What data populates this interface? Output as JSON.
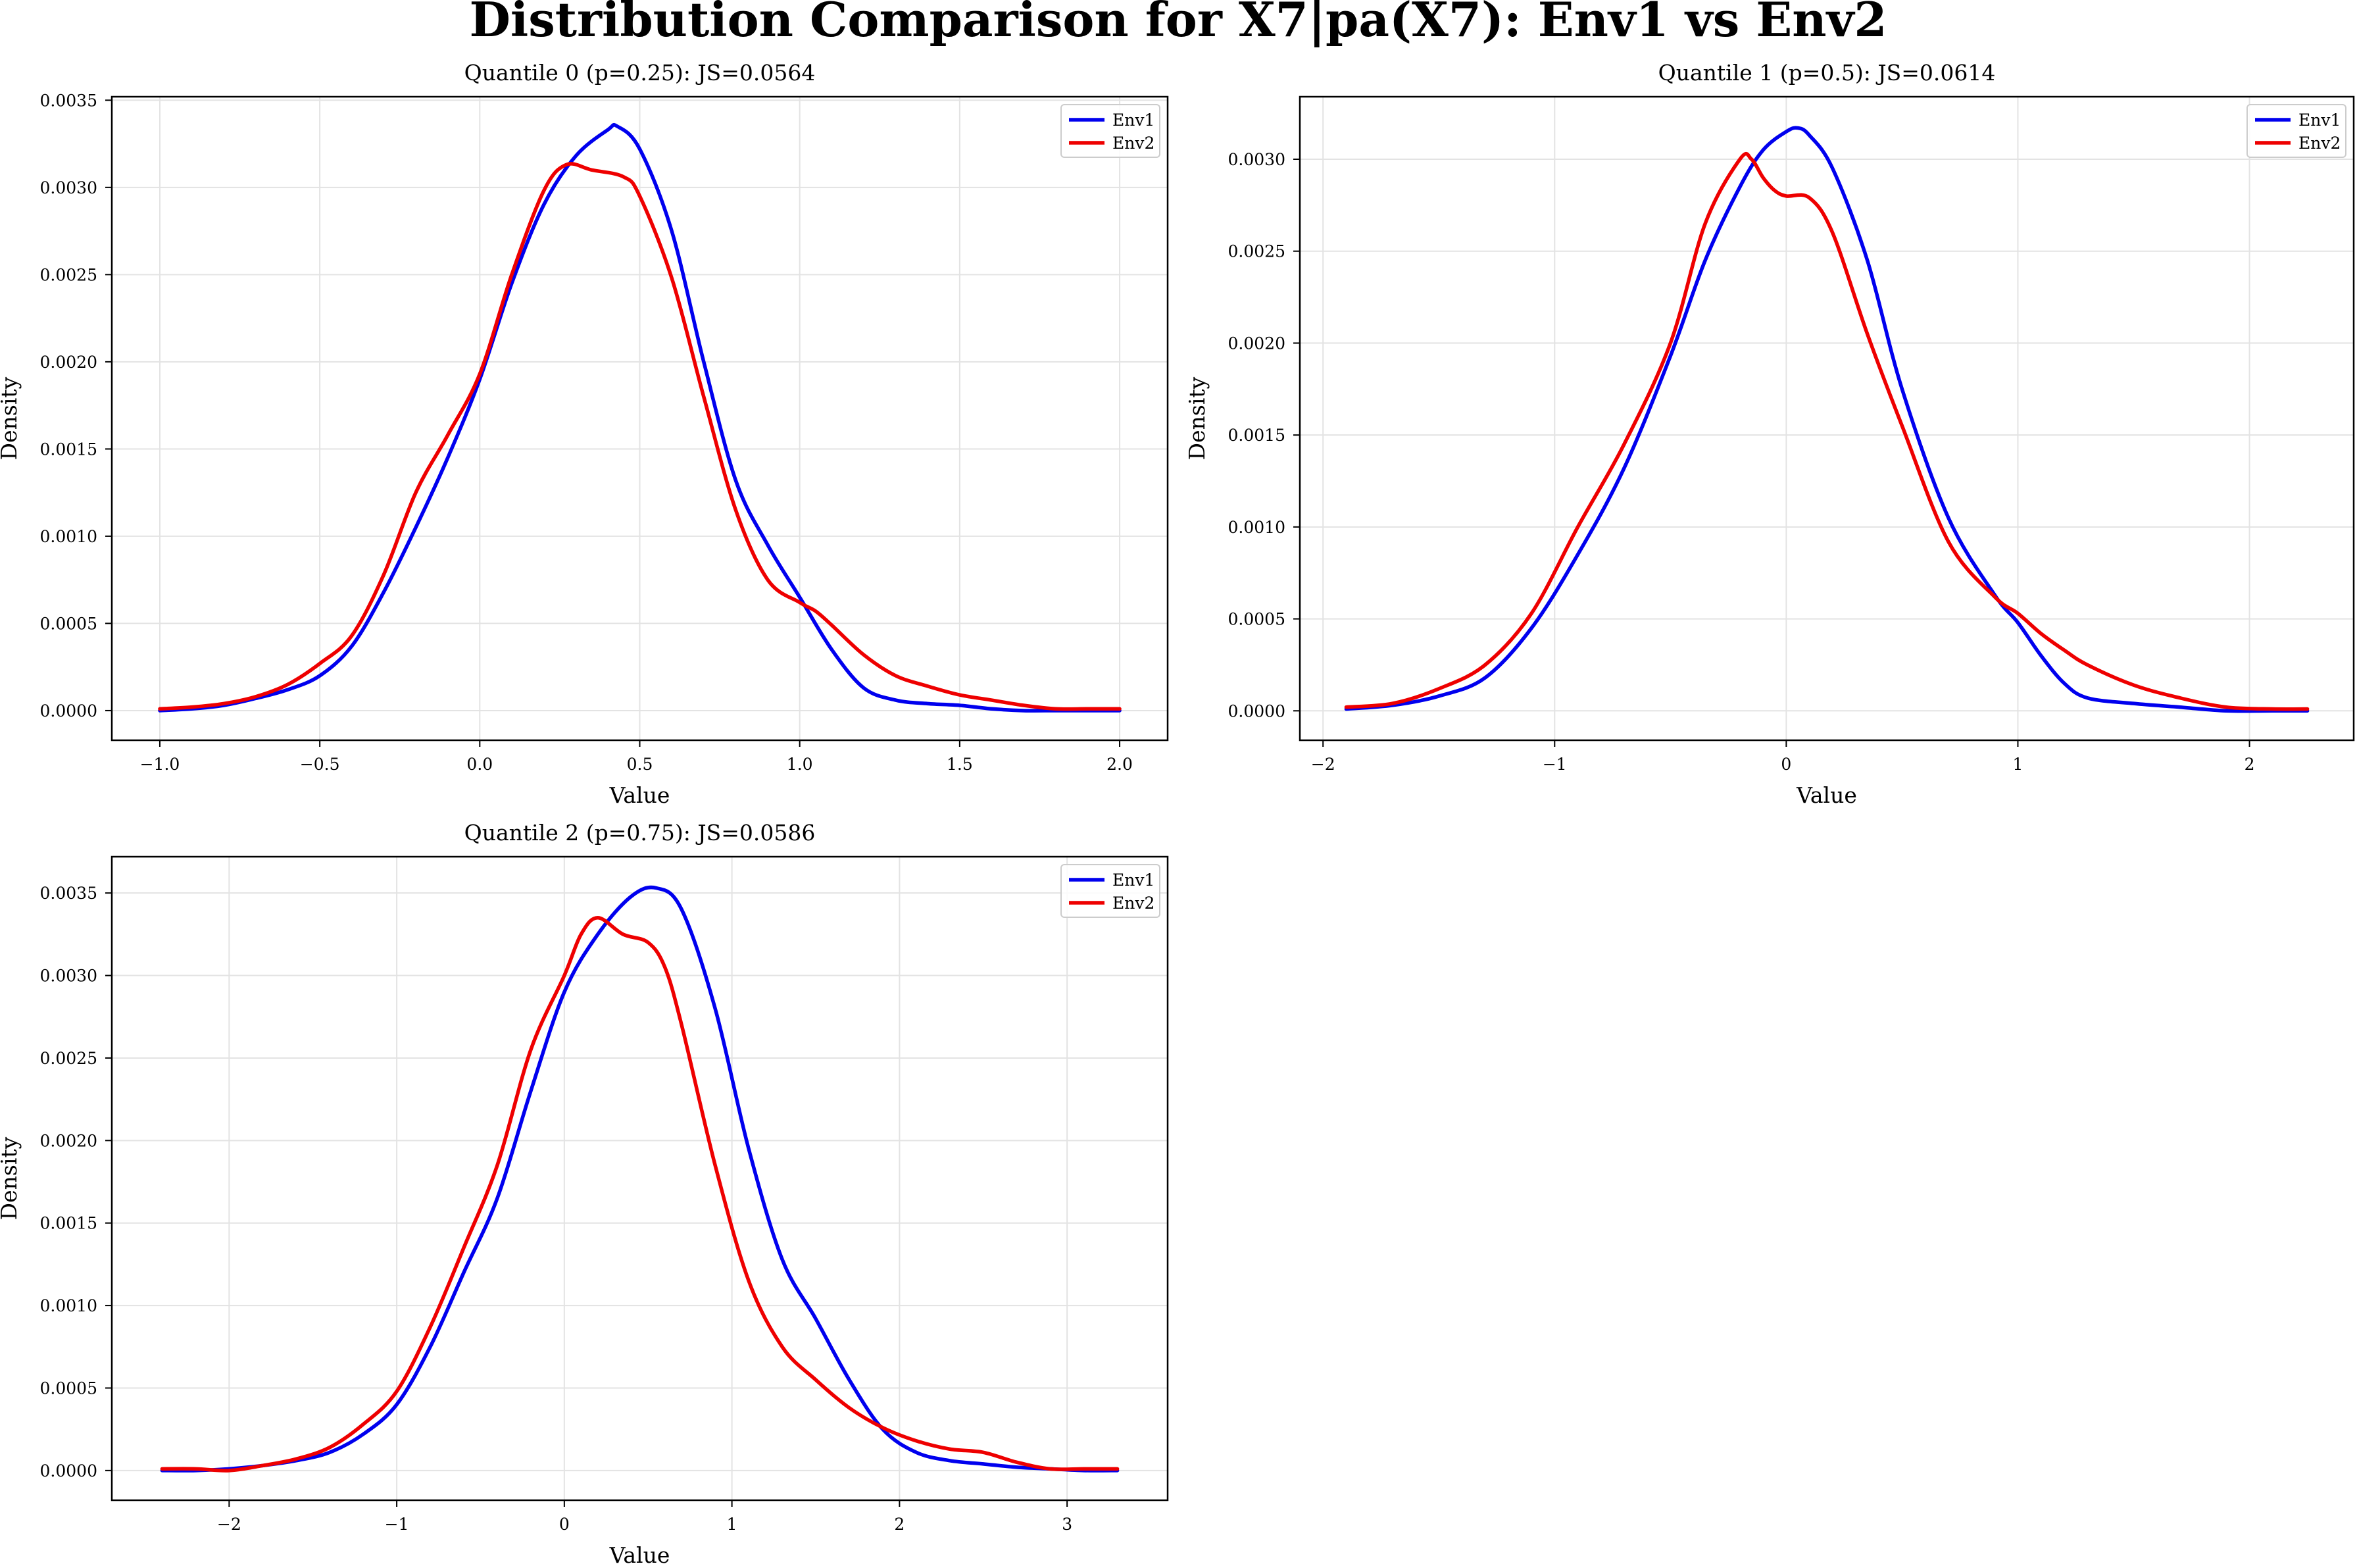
{
  "figure": {
    "title": "Distribution Comparison for X7|pa(X7): Env1 vs Env2"
  },
  "chart_data": [
    {
      "type": "line",
      "title": "Quantile 0 (p=0.25): JS=0.0564",
      "xlabel": "Value",
      "ylabel": "Density",
      "xlim": [
        -1.15,
        2.15
      ],
      "ylim": [
        -0.00017,
        0.00352
      ],
      "xticks": [
        -1.0,
        -0.5,
        0.0,
        0.5,
        1.0,
        1.5,
        2.0
      ],
      "xtick_labels": [
        "−1.0",
        "−0.5",
        "0.0",
        "0.5",
        "1.0",
        "1.5",
        "2.0"
      ],
      "yticks": [
        0.0,
        0.0005,
        0.001,
        0.0015,
        0.002,
        0.0025,
        0.003,
        0.0035
      ],
      "ytick_labels": [
        "0.0000",
        "0.0005",
        "0.0010",
        "0.0015",
        "0.0020",
        "0.0025",
        "0.0030",
        "0.0035"
      ],
      "grid": true,
      "legend": "top-right",
      "series": [
        {
          "name": "Env1",
          "color": "#0000ee",
          "x": [
            -1.0,
            -0.9,
            -0.8,
            -0.7,
            -0.6,
            -0.5,
            -0.4,
            -0.3,
            -0.2,
            -0.1,
            0.0,
            0.1,
            0.2,
            0.3,
            0.4,
            0.43,
            0.5,
            0.6,
            0.7,
            0.8,
            0.9,
            1.0,
            1.1,
            1.2,
            1.3,
            1.4,
            1.5,
            1.6,
            1.7,
            1.8,
            1.9,
            2.0
          ],
          "y": [
            0.0,
            1e-05,
            3e-05,
            7e-05,
            0.00012,
            0.0002,
            0.00037,
            0.00068,
            0.00105,
            0.00145,
            0.0019,
            0.00245,
            0.0029,
            0.00318,
            0.00333,
            0.00335,
            0.00322,
            0.00275,
            0.002,
            0.00132,
            0.00095,
            0.00065,
            0.00035,
            0.00013,
            6e-05,
            4e-05,
            3e-05,
            1e-05,
            0.0,
            0.0,
            0.0,
            0.0
          ]
        },
        {
          "name": "Env2",
          "color": "#ee0000",
          "x": [
            -1.0,
            -0.9,
            -0.8,
            -0.7,
            -0.6,
            -0.5,
            -0.4,
            -0.3,
            -0.2,
            -0.1,
            0.0,
            0.1,
            0.2,
            0.27,
            0.35,
            0.45,
            0.5,
            0.6,
            0.7,
            0.8,
            0.9,
            1.0,
            1.05,
            1.1,
            1.2,
            1.3,
            1.4,
            1.5,
            1.6,
            1.7,
            1.8,
            1.9,
            2.0
          ],
          "y": [
            1e-05,
            2e-05,
            4e-05,
            8e-05,
            0.00015,
            0.00027,
            0.00043,
            0.00078,
            0.00125,
            0.00158,
            0.00193,
            0.0025,
            0.00298,
            0.00313,
            0.0031,
            0.00306,
            0.00295,
            0.00248,
            0.0018,
            0.00115,
            0.00075,
            0.00062,
            0.00057,
            0.00049,
            0.00032,
            0.0002,
            0.00014,
            9e-05,
            6e-05,
            3e-05,
            1e-05,
            1e-05,
            1e-05
          ]
        }
      ]
    },
    {
      "type": "line",
      "title": "Quantile 1 (p=0.5): JS=0.0614",
      "xlabel": "Value",
      "ylabel": "Density",
      "xlim": [
        -2.1,
        2.45
      ],
      "ylim": [
        -0.00016,
        0.00334
      ],
      "xticks": [
        -2,
        -1,
        0,
        1,
        2
      ],
      "xtick_labels": [
        "−2",
        "−1",
        "0",
        "1",
        "2"
      ],
      "yticks": [
        0.0,
        0.0005,
        0.001,
        0.0015,
        0.002,
        0.0025,
        0.003
      ],
      "ytick_labels": [
        "0.0000",
        "0.0005",
        "0.0010",
        "0.0015",
        "0.0020",
        "0.0025",
        "0.0030"
      ],
      "grid": true,
      "legend": "top-right",
      "series": [
        {
          "name": "Env1",
          "color": "#0000ee",
          "x": [
            -1.9,
            -1.7,
            -1.5,
            -1.3,
            -1.1,
            -0.9,
            -0.7,
            -0.5,
            -0.35,
            -0.2,
            -0.1,
            0.0,
            0.05,
            0.1,
            0.2,
            0.35,
            0.5,
            0.7,
            0.9,
            1.0,
            1.1,
            1.2,
            1.3,
            1.5,
            1.7,
            1.9,
            2.1,
            2.25
          ],
          "y": [
            1e-05,
            3e-05,
            8e-05,
            0.00018,
            0.00045,
            0.00085,
            0.00132,
            0.00193,
            0.00245,
            0.00285,
            0.00305,
            0.00315,
            0.00317,
            0.00313,
            0.00295,
            0.00245,
            0.00175,
            0.00105,
            0.00063,
            0.00048,
            0.0003,
            0.00015,
            7e-05,
            4e-05,
            2e-05,
            0.0,
            0.0,
            0.0
          ]
        },
        {
          "name": "Env2",
          "color": "#ee0000",
          "x": [
            -1.9,
            -1.7,
            -1.5,
            -1.3,
            -1.1,
            -0.9,
            -0.7,
            -0.5,
            -0.35,
            -0.2,
            -0.15,
            -0.1,
            -0.05,
            0.0,
            0.1,
            0.2,
            0.35,
            0.5,
            0.7,
            0.9,
            1.0,
            1.1,
            1.2,
            1.3,
            1.5,
            1.7,
            1.9,
            2.1,
            2.25
          ],
          "y": [
            2e-05,
            4e-05,
            0.00012,
            0.00025,
            0.00053,
            0.001,
            0.00145,
            0.002,
            0.00265,
            0.003,
            0.003,
            0.0029,
            0.00283,
            0.0028,
            0.00279,
            0.0026,
            0.00205,
            0.00155,
            0.00092,
            0.00062,
            0.00053,
            0.00042,
            0.00033,
            0.00025,
            0.00014,
            7e-05,
            2e-05,
            1e-05,
            1e-05
          ]
        }
      ]
    },
    {
      "type": "line",
      "title": "Quantile 2 (p=0.75): JS=0.0586",
      "xlabel": "Value",
      "ylabel": "Density",
      "xlim": [
        -2.7,
        3.6
      ],
      "ylim": [
        -0.00018,
        0.00372
      ],
      "xticks": [
        -2,
        -1,
        0,
        1,
        2,
        3
      ],
      "xtick_labels": [
        "−2",
        "−1",
        "0",
        "1",
        "2",
        "3"
      ],
      "yticks": [
        0.0,
        0.0005,
        0.001,
        0.0015,
        0.002,
        0.0025,
        0.003,
        0.0035
      ],
      "ytick_labels": [
        "0.0000",
        "0.0005",
        "0.0010",
        "0.0015",
        "0.0020",
        "0.0025",
        "0.0030",
        "0.0035"
      ],
      "grid": true,
      "legend": "top-right",
      "series": [
        {
          "name": "Env1",
          "color": "#0000ee",
          "x": [
            -2.4,
            -2.2,
            -2.0,
            -1.8,
            -1.6,
            -1.4,
            -1.2,
            -1.0,
            -0.8,
            -0.6,
            -0.4,
            -0.2,
            0.0,
            0.2,
            0.4,
            0.55,
            0.7,
            0.9,
            1.1,
            1.3,
            1.5,
            1.7,
            1.9,
            2.1,
            2.3,
            2.5,
            2.7,
            2.9,
            3.1,
            3.3
          ],
          "y": [
            0.0,
            0.0,
            1e-05,
            3e-05,
            6e-05,
            0.00011,
            0.00022,
            0.0004,
            0.00075,
            0.0012,
            0.00165,
            0.0023,
            0.0029,
            0.00325,
            0.00348,
            0.00353,
            0.0034,
            0.0028,
            0.00195,
            0.00128,
            0.00092,
            0.00055,
            0.00025,
            0.00011,
            6e-05,
            4e-05,
            2e-05,
            1e-05,
            0.0,
            0.0
          ]
        },
        {
          "name": "Env2",
          "color": "#ee0000",
          "x": [
            -2.4,
            -2.2,
            -2.0,
            -1.8,
            -1.6,
            -1.4,
            -1.2,
            -1.0,
            -0.8,
            -0.6,
            -0.4,
            -0.2,
            0.0,
            0.1,
            0.2,
            0.35,
            0.5,
            0.6,
            0.7,
            0.9,
            1.1,
            1.3,
            1.5,
            1.7,
            1.9,
            2.1,
            2.3,
            2.5,
            2.7,
            2.9,
            3.1,
            3.3
          ],
          "y": [
            1e-05,
            1e-05,
            0.0,
            3e-05,
            7e-05,
            0.00014,
            0.00028,
            0.00048,
            0.00087,
            0.00135,
            0.00185,
            0.00255,
            0.003,
            0.00325,
            0.00335,
            0.00325,
            0.0032,
            0.00305,
            0.0027,
            0.00185,
            0.00115,
            0.00075,
            0.00055,
            0.00038,
            0.00026,
            0.00018,
            0.00013,
            0.00011,
            5e-05,
            1e-05,
            1e-05,
            1e-05
          ]
        }
      ]
    }
  ]
}
